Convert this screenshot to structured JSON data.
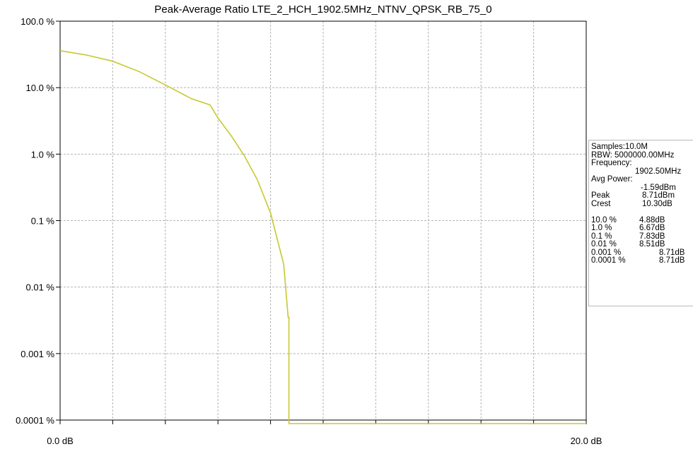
{
  "chart_data": {
    "type": "line",
    "title": "Peak-Average Ratio LTE_2_HCH_1902.5MHz_NTNV_QPSK_RB_75_0",
    "xlim": [
      0,
      20
    ],
    "ylim": [
      0.0001,
      100
    ],
    "y_scale": "log",
    "x_tick_labels": [
      "0.0 dB",
      "20.0 dB"
    ],
    "y_tick_labels": [
      "100.0 %",
      "10.0 %",
      "1.0 %",
      "0.1 %",
      "0.01 %",
      "0.001 %",
      "0.0001 %"
    ],
    "y_tick_values": [
      100,
      10,
      1,
      0.1,
      0.01,
      0.001,
      0.0001
    ],
    "grid": true,
    "series": [
      {
        "color": "#c8c832",
        "x": [
          0,
          1,
          2,
          3,
          4,
          5,
          5.7,
          6.0,
          6.5,
          7.0,
          7.5,
          8.0,
          8.5,
          8.67,
          8.7,
          8.7,
          20
        ],
        "y": [
          36,
          31,
          25,
          17.5,
          11,
          6.8,
          5.5,
          3.5,
          1.9,
          0.95,
          0.41,
          0.13,
          0.022,
          0.0035,
          0.0035,
          8e-05,
          8e-05
        ]
      }
    ]
  },
  "info_panel": {
    "samples": "Samples:10.0M",
    "rbw": "RBW: 5000000.00MHz",
    "frequency_label": "Frequency:",
    "frequency_value": "1902.50MHz",
    "avg_power_label": "Avg Power:",
    "avg_power_value": "-1.59dBm",
    "peak_label": "Peak",
    "peak_value": "8.71dBm",
    "crest_label": "Crest",
    "crest_value": "10.30dB",
    "ccdf": [
      {
        "prob": "10.0 %",
        "value": "4.88dB"
      },
      {
        "prob": "1.0 %",
        "value": "6.67dB"
      },
      {
        "prob": "0.1 %",
        "value": "7.83dB"
      },
      {
        "prob": "0.01 %",
        "value": "8.51dB"
      },
      {
        "prob": "0.001 %",
        "value": "8.71dB"
      },
      {
        "prob": "0.0001 %",
        "value": "8.71dB"
      }
    ]
  }
}
